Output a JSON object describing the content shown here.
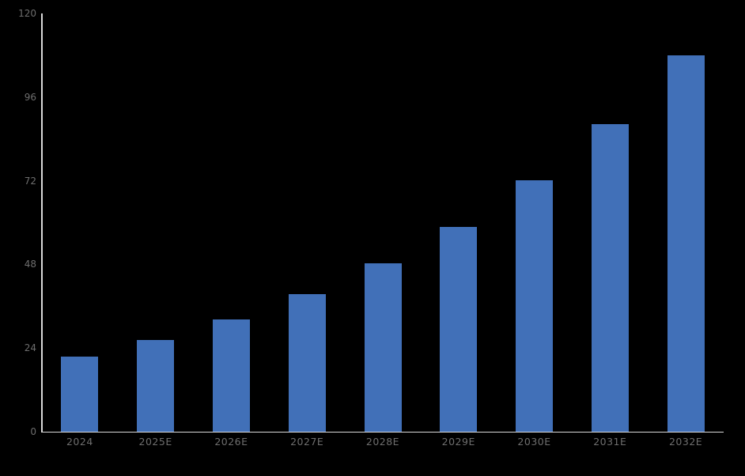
{
  "chart_data": {
    "type": "bar",
    "categories": [
      "2024",
      "2025E",
      "2026E",
      "2027E",
      "2028E",
      "2029E",
      "2030E",
      "2031E",
      "2032E"
    ],
    "values": [
      21.6,
      26.4,
      32.3,
      39.5,
      48.3,
      58.8,
      72.1,
      88.3,
      108.0
    ],
    "title": "",
    "xlabel": "",
    "ylabel": "",
    "ylim": [
      0,
      120
    ],
    "yticks": [
      0,
      24,
      48,
      72,
      96,
      120
    ],
    "grid": false,
    "legend": false,
    "colors": {
      "background": "#000000",
      "bar": "#4170b8",
      "axis_line": "#d9d9d9",
      "tick_label": "#6e6e6e"
    }
  }
}
